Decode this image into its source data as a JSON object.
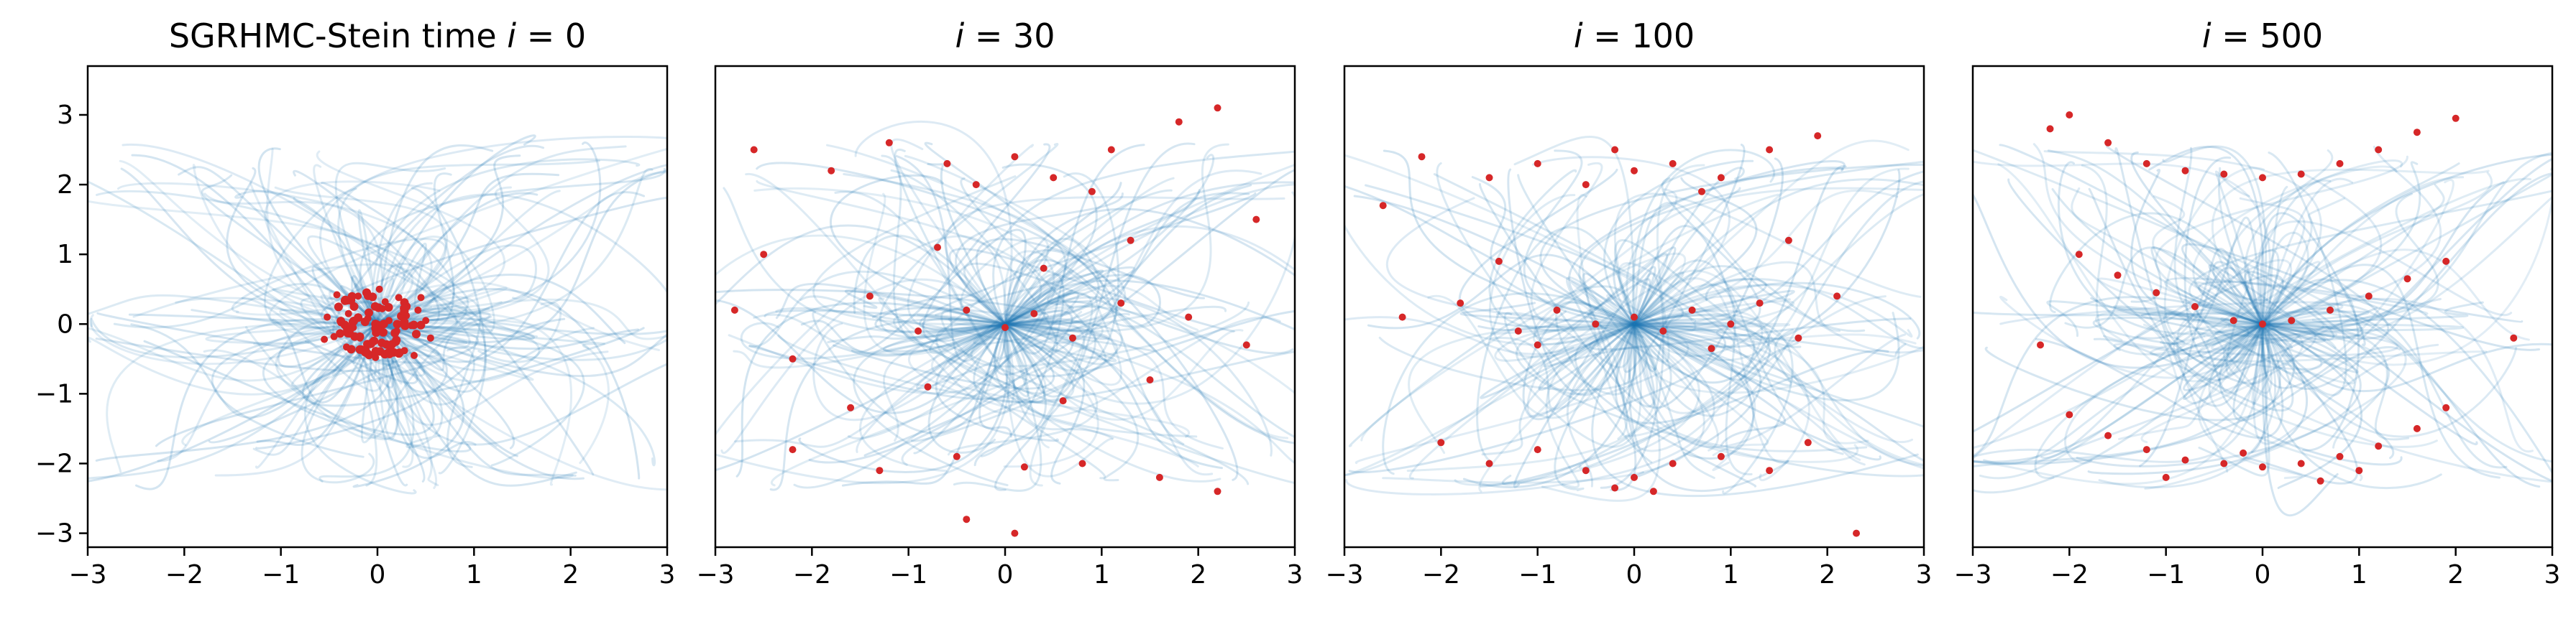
{
  "chart_data": [
    {
      "type": "scatter",
      "title_text": "SGRHMC-Stein time ",
      "title_var": "i",
      "title_eq": " = 0",
      "xlim": [
        -3,
        3
      ],
      "ylim": [
        -3.2,
        3.7
      ],
      "xticks": [
        "−3",
        "−2",
        "−1",
        "0",
        "1",
        "2",
        "3"
      ],
      "xtick_values": [
        -3,
        -2,
        -1,
        0,
        1,
        2,
        3
      ],
      "yticks": [
        "−3",
        "−2",
        "−1",
        "0",
        "1",
        "2",
        "3"
      ],
      "ytick_values": [
        -3,
        -2,
        -1,
        0,
        1,
        2,
        3
      ],
      "show_yticks": true,
      "particle_distribution": "concentrated at origin",
      "particles": [
        [
          0,
          0
        ],
        [
          0.12,
          0.05
        ],
        [
          -0.1,
          0.08
        ],
        [
          0.2,
          -0.1
        ],
        [
          -0.25,
          -0.05
        ],
        [
          0.05,
          0.22
        ],
        [
          -0.05,
          -0.25
        ],
        [
          0.3,
          0.12
        ],
        [
          -0.3,
          0.15
        ],
        [
          0.15,
          -0.28
        ],
        [
          -0.18,
          -0.2
        ],
        [
          0.35,
          -0.02
        ],
        [
          -0.38,
          0.02
        ],
        [
          0.08,
          0.32
        ],
        [
          -0.12,
          -0.35
        ],
        [
          0.42,
          0.2
        ],
        [
          -0.45,
          -0.18
        ],
        [
          0.22,
          0.38
        ],
        [
          -0.2,
          0.4
        ],
        [
          0.28,
          -0.38
        ],
        [
          -0.32,
          -0.33
        ],
        [
          0.5,
          0.05
        ],
        [
          -0.52,
          0.1
        ],
        [
          0.02,
          0.5
        ],
        [
          -0.02,
          -0.48
        ],
        [
          0.55,
          -0.2
        ],
        [
          -0.55,
          -0.22
        ],
        [
          0.45,
          0.38
        ],
        [
          -0.42,
          0.42
        ],
        [
          0.38,
          -0.45
        ]
      ]
    },
    {
      "type": "scatter",
      "title_text": "",
      "title_var": "i",
      "title_eq": " = 30",
      "xlim": [
        -3,
        3
      ],
      "ylim": [
        -3.2,
        3.7
      ],
      "xticks": [
        "−3",
        "−2",
        "−1",
        "0",
        "1",
        "2",
        "3"
      ],
      "xtick_values": [
        -3,
        -2,
        -1,
        0,
        1,
        2,
        3
      ],
      "yticks": [],
      "show_yticks": false,
      "particle_distribution": "spreading radially toward three bands at y ≈ 2.2, 0, −2.0",
      "particles": [
        [
          -2.6,
          2.5
        ],
        [
          -1.8,
          2.2
        ],
        [
          -1.2,
          2.6
        ],
        [
          -0.6,
          2.3
        ],
        [
          0.1,
          2.4
        ],
        [
          0.5,
          2.1
        ],
        [
          1.1,
          2.5
        ],
        [
          1.8,
          2.9
        ],
        [
          2.2,
          3.1
        ],
        [
          -0.3,
          2.0
        ],
        [
          0.9,
          1.9
        ],
        [
          -2.8,
          0.2
        ],
        [
          -2.2,
          -0.5
        ],
        [
          -1.4,
          0.4
        ],
        [
          -0.9,
          -0.1
        ],
        [
          -0.4,
          0.2
        ],
        [
          0.0,
          -0.05
        ],
        [
          0.3,
          0.15
        ],
        [
          0.7,
          -0.2
        ],
        [
          1.2,
          0.3
        ],
        [
          1.9,
          0.1
        ],
        [
          2.5,
          -0.3
        ],
        [
          -1.6,
          -1.2
        ],
        [
          -0.8,
          -0.9
        ],
        [
          0.6,
          -1.1
        ],
        [
          1.5,
          -0.8
        ],
        [
          -2.2,
          -1.8
        ],
        [
          -1.3,
          -2.1
        ],
        [
          -0.5,
          -1.9
        ],
        [
          0.2,
          -2.05
        ],
        [
          0.8,
          -2.0
        ],
        [
          1.6,
          -2.2
        ],
        [
          2.2,
          -2.4
        ],
        [
          -0.4,
          -2.8
        ],
        [
          0.1,
          -3.0
        ],
        [
          2.6,
          1.5
        ],
        [
          -2.5,
          1.0
        ],
        [
          1.3,
          1.2
        ],
        [
          -0.7,
          1.1
        ],
        [
          0.4,
          0.8
        ]
      ]
    },
    {
      "type": "scatter",
      "title_text": "",
      "title_var": "i",
      "title_eq": " = 100",
      "xlim": [
        -3,
        3
      ],
      "ylim": [
        -3.2,
        3.7
      ],
      "xticks": [
        "−3",
        "−2",
        "−1",
        "0",
        "1",
        "2",
        "3"
      ],
      "xtick_values": [
        -3,
        -2,
        -1,
        0,
        1,
        2,
        3
      ],
      "yticks": [],
      "show_yticks": false,
      "particle_distribution": "clustering into three bands at y ≈ 2.2, 0, −2.0",
      "particles": [
        [
          -2.2,
          2.4
        ],
        [
          -1.5,
          2.1
        ],
        [
          -1.0,
          2.3
        ],
        [
          -0.5,
          2.0
        ],
        [
          0.0,
          2.2
        ],
        [
          0.4,
          2.3
        ],
        [
          0.9,
          2.1
        ],
        [
          1.4,
          2.5
        ],
        [
          1.9,
          2.7
        ],
        [
          -0.2,
          2.5
        ],
        [
          0.7,
          1.9
        ],
        [
          -2.4,
          0.1
        ],
        [
          -1.8,
          0.3
        ],
        [
          -1.2,
          -0.1
        ],
        [
          -0.8,
          0.2
        ],
        [
          -0.4,
          0.0
        ],
        [
          0.0,
          0.1
        ],
        [
          0.3,
          -0.1
        ],
        [
          0.6,
          0.2
        ],
        [
          1.0,
          0.0
        ],
        [
          1.3,
          0.3
        ],
        [
          1.7,
          -0.2
        ],
        [
          2.1,
          0.4
        ],
        [
          -1.0,
          -0.3
        ],
        [
          0.8,
          -0.35
        ],
        [
          -2.0,
          -1.7
        ],
        [
          -1.5,
          -2.0
        ],
        [
          -1.0,
          -1.8
        ],
        [
          -0.5,
          -2.1
        ],
        [
          0.0,
          -2.2
        ],
        [
          0.4,
          -2.0
        ],
        [
          0.9,
          -1.9
        ],
        [
          1.4,
          -2.1
        ],
        [
          1.8,
          -1.7
        ],
        [
          -0.2,
          -2.35
        ],
        [
          0.2,
          -2.4
        ],
        [
          2.3,
          -3.0
        ],
        [
          -2.6,
          1.7
        ],
        [
          1.6,
          1.2
        ],
        [
          -1.4,
          0.9
        ]
      ]
    },
    {
      "type": "scatter",
      "title_text": "",
      "title_var": "i",
      "title_eq": " = 500",
      "xlim": [
        -3,
        3
      ],
      "ylim": [
        -3.2,
        3.7
      ],
      "xticks": [
        "−3",
        "−2",
        "−1",
        "0",
        "1",
        "2",
        "3"
      ],
      "xtick_values": [
        -3,
        -2,
        -1,
        0,
        1,
        2,
        3
      ],
      "yticks": [],
      "show_yticks": false,
      "particle_distribution": "converged to three curved bands: upper arc y ≈ 2.2, middle arc through origin, lower arc y ≈ −2.0",
      "particles": [
        [
          -2.0,
          3.0
        ],
        [
          -1.6,
          2.6
        ],
        [
          -1.2,
          2.3
        ],
        [
          -0.8,
          2.2
        ],
        [
          -0.4,
          2.15
        ],
        [
          0.0,
          2.1
        ],
        [
          0.4,
          2.15
        ],
        [
          0.8,
          2.3
        ],
        [
          1.2,
          2.5
        ],
        [
          1.6,
          2.75
        ],
        [
          2.0,
          2.95
        ],
        [
          -1.9,
          1.0
        ],
        [
          -1.5,
          0.7
        ],
        [
          -1.1,
          0.45
        ],
        [
          -0.7,
          0.25
        ],
        [
          -0.3,
          0.05
        ],
        [
          0.0,
          0.0
        ],
        [
          0.3,
          0.05
        ],
        [
          0.7,
          0.2
        ],
        [
          1.1,
          0.4
        ],
        [
          1.5,
          0.65
        ],
        [
          1.9,
          0.9
        ],
        [
          -2.0,
          -1.3
        ],
        [
          -1.6,
          -1.6
        ],
        [
          -1.2,
          -1.8
        ],
        [
          -0.8,
          -1.95
        ],
        [
          -0.4,
          -2.0
        ],
        [
          0.0,
          -2.05
        ],
        [
          0.4,
          -2.0
        ],
        [
          0.8,
          -1.9
        ],
        [
          1.2,
          -1.75
        ],
        [
          1.6,
          -1.5
        ],
        [
          1.9,
          -1.2
        ],
        [
          -1.0,
          -2.2
        ],
        [
          0.6,
          -2.25
        ],
        [
          -0.2,
          -1.85
        ],
        [
          1.0,
          -2.1
        ],
        [
          -2.3,
          -0.3
        ],
        [
          2.6,
          -0.2
        ],
        [
          -2.2,
          2.8
        ]
      ]
    }
  ],
  "colors": {
    "particle": "#d62728",
    "trajectory": "#1f77b4",
    "frame": "#000000",
    "background": "#ffffff"
  }
}
